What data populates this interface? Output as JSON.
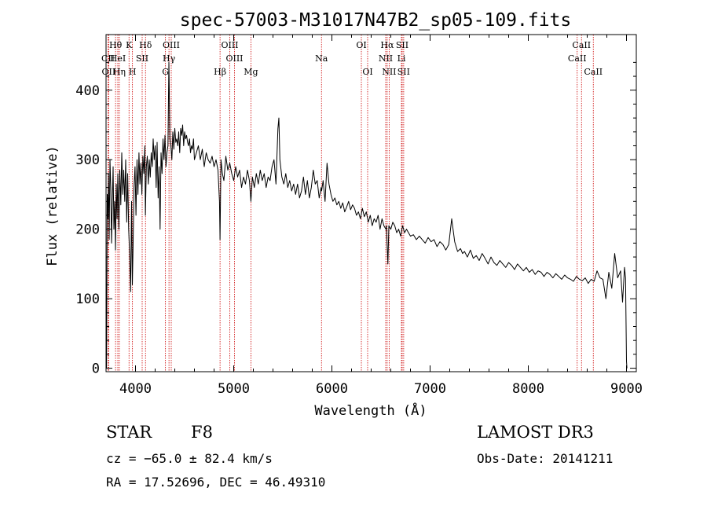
{
  "chart_data": {
    "type": "line",
    "title": "spec-57003-M31017N47B2_sp05-109.fits",
    "xlabel": "Wavelength (Å)",
    "ylabel": "Flux (relative)",
    "xlim": [
      3700,
      9100
    ],
    "ylim": [
      -5,
      480
    ],
    "xticks": [
      4000,
      5000,
      6000,
      7000,
      8000,
      9000
    ],
    "yticks": [
      0,
      100,
      200,
      300,
      400
    ],
    "series": [
      {
        "name": "spectrum",
        "x": [
          3700,
          3705,
          3712,
          3718,
          3725,
          3732,
          3740,
          3748,
          3756,
          3764,
          3772,
          3780,
          3788,
          3796,
          3804,
          3812,
          3820,
          3830,
          3840,
          3850,
          3860,
          3870,
          3880,
          3890,
          3900,
          3910,
          3920,
          3930,
          3940,
          3950,
          3960,
          3968,
          3975,
          3985,
          3995,
          4005,
          4015,
          4025,
          4035,
          4045,
          4055,
          4065,
          4075,
          4085,
          4095,
          4101,
          4110,
          4120,
          4130,
          4140,
          4150,
          4160,
          4170,
          4180,
          4190,
          4200,
          4210,
          4220,
          4230,
          4240,
          4250,
          4260,
          4270,
          4280,
          4290,
          4300,
          4310,
          4320,
          4330,
          4340,
          4350,
          4360,
          4370,
          4380,
          4390,
          4400,
          4410,
          4420,
          4430,
          4440,
          4450,
          4460,
          4470,
          4480,
          4490,
          4500,
          4510,
          4520,
          4530,
          4540,
          4550,
          4560,
          4570,
          4580,
          4590,
          4600,
          4620,
          4640,
          4660,
          4680,
          4700,
          4720,
          4740,
          4760,
          4780,
          4800,
          4820,
          4840,
          4855,
          4861,
          4870,
          4885,
          4900,
          4920,
          4940,
          4960,
          4980,
          5000,
          5020,
          5040,
          5060,
          5080,
          5100,
          5120,
          5140,
          5160,
          5175,
          5190,
          5210,
          5230,
          5250,
          5270,
          5290,
          5310,
          5330,
          5350,
          5370,
          5390,
          5410,
          5430,
          5450,
          5460,
          5470,
          5490,
          5510,
          5530,
          5550,
          5570,
          5590,
          5610,
          5630,
          5650,
          5670,
          5690,
          5710,
          5730,
          5750,
          5770,
          5790,
          5810,
          5830,
          5850,
          5870,
          5890,
          5895,
          5910,
          5930,
          5950,
          5970,
          5990,
          6010,
          6030,
          6050,
          6070,
          6090,
          6110,
          6130,
          6150,
          6170,
          6190,
          6210,
          6230,
          6250,
          6270,
          6290,
          6310,
          6330,
          6350,
          6370,
          6390,
          6410,
          6430,
          6450,
          6470,
          6490,
          6510,
          6530,
          6550,
          6555,
          6563,
          6570,
          6580,
          6600,
          6620,
          6640,
          6660,
          6680,
          6700,
          6720,
          6740,
          6760,
          6780,
          6800,
          6830,
          6860,
          6890,
          6920,
          6950,
          6980,
          7010,
          7040,
          7070,
          7100,
          7130,
          7160,
          7190,
          7220,
          7250,
          7280,
          7310,
          7330,
          7350,
          7380,
          7410,
          7440,
          7470,
          7500,
          7530,
          7560,
          7590,
          7620,
          7650,
          7680,
          7710,
          7740,
          7770,
          7800,
          7830,
          7860,
          7890,
          7920,
          7950,
          7980,
          8010,
          8040,
          8070,
          8100,
          8130,
          8160,
          8190,
          8220,
          8250,
          8280,
          8310,
          8340,
          8370,
          8400,
          8430,
          8460,
          8490,
          8520,
          8550,
          8580,
          8610,
          8640,
          8670,
          8700,
          8730,
          8760,
          8790,
          8820,
          8850,
          8880,
          8910,
          8940,
          8960,
          8980,
          8990,
          9000,
          9005
        ],
        "values": [
          50,
          0,
          250,
          215,
          280,
          185,
          300,
          260,
          180,
          240,
          290,
          200,
          240,
          170,
          265,
          215,
          280,
          200,
          285,
          235,
          310,
          250,
          285,
          240,
          300,
          210,
          280,
          200,
          165,
          110,
          240,
          120,
          175,
          260,
          290,
          220,
          300,
          250,
          310,
          265,
          295,
          250,
          305,
          280,
          320,
          220,
          290,
          305,
          265,
          300,
          275,
          310,
          290,
          330,
          300,
          320,
          260,
          325,
          245,
          290,
          200,
          310,
          280,
          330,
          300,
          335,
          290,
          310,
          320,
          440,
          330,
          320,
          300,
          340,
          315,
          345,
          325,
          330,
          320,
          340,
          310,
          345,
          335,
          350,
          320,
          340,
          330,
          335,
          325,
          320,
          330,
          310,
          320,
          315,
          330,
          300,
          310,
          320,
          300,
          315,
          290,
          310,
          300,
          295,
          305,
          290,
          300,
          285,
          240,
          185,
          300,
          280,
          270,
          305,
          285,
          295,
          280,
          270,
          290,
          275,
          285,
          260,
          275,
          265,
          285,
          270,
          240,
          275,
          260,
          280,
          265,
          285,
          270,
          280,
          260,
          275,
          270,
          290,
          300,
          265,
          345,
          360,
          300,
          275,
          265,
          280,
          260,
          270,
          255,
          265,
          250,
          265,
          245,
          255,
          275,
          250,
          270,
          245,
          260,
          285,
          265,
          270,
          245,
          260,
          255,
          270,
          240,
          295,
          265,
          250,
          240,
          245,
          235,
          240,
          230,
          238,
          225,
          232,
          240,
          228,
          235,
          230,
          220,
          225,
          215,
          230,
          218,
          225,
          210,
          220,
          205,
          215,
          210,
          220,
          200,
          215,
          205,
          200,
          205,
          175,
          150,
          205,
          200,
          210,
          205,
          195,
          200,
          190,
          205,
          195,
          200,
          195,
          190,
          192,
          185,
          190,
          185,
          180,
          188,
          182,
          185,
          175,
          182,
          178,
          170,
          178,
          215,
          182,
          168,
          172,
          165,
          168,
          160,
          170,
          158,
          162,
          155,
          165,
          158,
          150,
          160,
          152,
          148,
          155,
          150,
          145,
          152,
          148,
          142,
          150,
          145,
          140,
          145,
          138,
          142,
          135,
          140,
          138,
          132,
          138,
          135,
          130,
          136,
          132,
          128,
          134,
          130,
          128,
          125,
          132,
          128,
          126,
          130,
          122,
          128,
          125,
          140,
          130,
          128,
          100,
          138,
          115,
          165,
          130,
          140,
          95,
          145,
          130,
          10,
          0
        ]
      }
    ],
    "line_ids": [
      {
        "label": "Hθ",
        "x": 3797,
        "row": 1
      },
      {
        "label": "CII",
        "x": 3720,
        "row": 2
      },
      {
        "label": "OII",
        "x": 3727,
        "row": 3
      },
      {
        "label": "HeI",
        "x": 3820,
        "row": 2
      },
      {
        "label": "Hη",
        "x": 3835,
        "row": 3
      },
      {
        "label": "K",
        "x": 3934,
        "row": 1
      },
      {
        "label": "SII",
        "x": 4068,
        "row": 2
      },
      {
        "label": "H",
        "x": 3969,
        "row": 3
      },
      {
        "label": "Hδ",
        "x": 4102,
        "row": 1
      },
      {
        "label": "OIII",
        "x": 4364,
        "row": 1
      },
      {
        "label": "Hγ",
        "x": 4341,
        "row": 2
      },
      {
        "label": "G",
        "x": 4305,
        "row": 3
      },
      {
        "label": "OIII",
        "x": 4960,
        "row": 1
      },
      {
        "label": "OIII",
        "x": 5008,
        "row": 2
      },
      {
        "label": "Hβ",
        "x": 4861,
        "row": 3
      },
      {
        "label": "Mg",
        "x": 5175,
        "row": 3
      },
      {
        "label": "Na",
        "x": 5894,
        "row": 2
      },
      {
        "label": "OI",
        "x": 6300,
        "row": 1
      },
      {
        "label": "OI",
        "x": 6364,
        "row": 3
      },
      {
        "label": "Hα",
        "x": 6563,
        "row": 1
      },
      {
        "label": "SII",
        "x": 6716,
        "row": 1
      },
      {
        "label": "NII",
        "x": 6548,
        "row": 2
      },
      {
        "label": "Li",
        "x": 6708,
        "row": 2
      },
      {
        "label": "NII",
        "x": 6583,
        "row": 3
      },
      {
        "label": "SII",
        "x": 6731,
        "row": 3
      },
      {
        "label": "CaII",
        "x": 8542,
        "row": 1
      },
      {
        "label": "CaII",
        "x": 8498,
        "row": 2
      },
      {
        "label": "CaII",
        "x": 8662,
        "row": 3
      }
    ]
  },
  "info": {
    "class_label": "STAR",
    "subclass": "F8",
    "survey": "LAMOST DR3",
    "cz": "cz = −65.0 ± 82.4 km/s",
    "obs_date": "Obs-Date: 20141211",
    "coords": "RA =  17.52696, DEC =  46.49310"
  },
  "colors": {
    "spectrum": "#000000",
    "line_marker": "#cc0000"
  }
}
